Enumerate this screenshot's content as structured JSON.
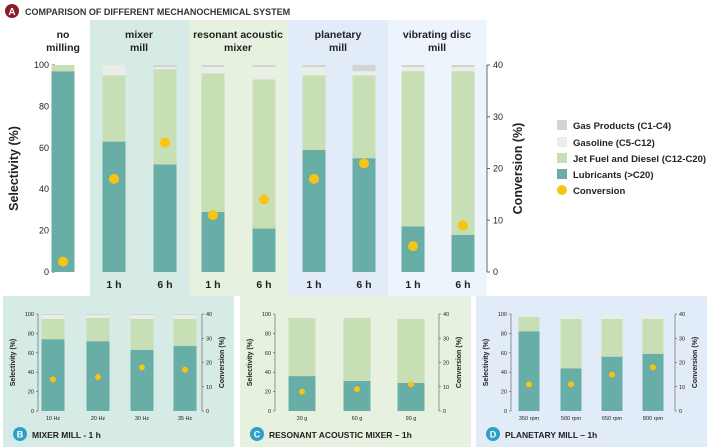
{
  "colors": {
    "gas": "#d3d3d3",
    "gasoline": "#e9efe6",
    "jet": "#c8deb5",
    "lubricants": "#69ada7",
    "conversion": "#f6c413",
    "badge": "#8a1c28",
    "mixer_bg": "#d6ebe6",
    "ram_bg": "#e6f2df",
    "planetary_bg": "#e2ecf8",
    "vibrating_bg": "#eef4fb"
  },
  "panel_a": {
    "badge": "A",
    "title": "COMPARISON OF DIFFERENT MECHANOCHEMICAL SYSTEM"
  },
  "panel_b": {
    "badge": "B",
    "title": "MIXER MILL - 1 h"
  },
  "panel_c": {
    "badge": "C",
    "title": "RESONANT ACOUSTIC MIXER – 1h"
  },
  "panel_d": {
    "badge": "D",
    "title": "PLANETARY MILL – 1h"
  },
  "legend": [
    {
      "key": "gas",
      "label": "Gas Products (C1-C4)",
      "marker": "square"
    },
    {
      "key": "gasoline",
      "label": "Gasoline (C5-C12)",
      "marker": "square"
    },
    {
      "key": "jet",
      "label": "Jet Fuel and Diesel (C12-C20)",
      "marker": "square"
    },
    {
      "key": "lubricants",
      "label": "Lubricants (>C20)",
      "marker": "square"
    },
    {
      "key": "conversion",
      "label": "Conversion",
      "marker": "circle"
    }
  ],
  "chart_data": [
    {
      "id": "A",
      "type": "bar",
      "stacked": true,
      "title": "COMPARISON OF DIFFERENT MECHANOCHEMICAL SYSTEM",
      "ylabel": "Selectivity (%)",
      "y2label": "Conversion (%)",
      "ylim": [
        0,
        100
      ],
      "y2lim": [
        0,
        40
      ],
      "yticks": [
        0,
        20,
        40,
        60,
        80,
        100
      ],
      "y2ticks": [
        0,
        10,
        20,
        30,
        40
      ],
      "groups": [
        {
          "name": "no\nmilling",
          "bars": [
            0
          ]
        },
        {
          "name": "mixer\nmill",
          "bars": [
            1,
            2
          ]
        },
        {
          "name": "resonant acoustic\nmixer",
          "bars": [
            3,
            4
          ]
        },
        {
          "name": "planetary\nmill",
          "bars": [
            5,
            6
          ]
        },
        {
          "name": "vibrating disc\nmill",
          "bars": [
            7,
            8
          ]
        }
      ],
      "categories": [
        "",
        "1 h",
        "6 h",
        "1 h",
        "6 h",
        "1 h",
        "6 h",
        "1 h",
        "6 h"
      ],
      "series": [
        {
          "name": "Lubricants (>C20)",
          "key": "lubricants",
          "values": [
            97,
            63,
            52,
            29,
            21,
            59,
            55,
            22,
            18
          ]
        },
        {
          "name": "Jet Fuel and Diesel (C12-C20)",
          "key": "jet",
          "values": [
            3,
            32,
            46,
            67,
            72,
            36,
            40,
            75,
            79
          ]
        },
        {
          "name": "Gasoline (C5-C12)",
          "key": "gasoline",
          "values": [
            0,
            5,
            1,
            3,
            6,
            4,
            2,
            2,
            2
          ]
        },
        {
          "name": "Gas Products (C1-C4)",
          "key": "gas",
          "values": [
            0,
            0,
            1,
            1,
            1,
            1,
            3,
            1,
            1
          ]
        }
      ],
      "conversion": [
        2,
        18,
        25,
        11,
        14,
        18,
        21,
        5,
        9
      ],
      "grid": false,
      "legend_position": "right"
    },
    {
      "id": "B",
      "type": "bar",
      "stacked": true,
      "ylabel": "Selectivity (%)",
      "y2label": "Conversion (%)",
      "ylim": [
        0,
        100
      ],
      "y2lim": [
        0,
        40
      ],
      "yticks": [
        0,
        20,
        40,
        60,
        80,
        100
      ],
      "y2ticks": [
        0,
        10,
        20,
        30,
        40
      ],
      "categories": [
        "10 Hz",
        "20 Hz",
        "30 Hz",
        "35 Hz"
      ],
      "series": [
        {
          "name": "Lubricants (>C20)",
          "key": "lubricants",
          "values": [
            74,
            72,
            63,
            67
          ]
        },
        {
          "name": "Jet Fuel and Diesel (C12-C20)",
          "key": "jet",
          "values": [
            21,
            24,
            32,
            28
          ]
        },
        {
          "name": "Gasoline (C5-C12)",
          "key": "gasoline",
          "values": [
            4,
            3,
            4,
            4
          ]
        },
        {
          "name": "Gas Products (C1-C4)",
          "key": "gas",
          "values": [
            1,
            1,
            1,
            1
          ]
        }
      ],
      "conversion": [
        13,
        14,
        18,
        17
      ]
    },
    {
      "id": "C",
      "type": "bar",
      "stacked": true,
      "ylabel": "Selectivity (%)",
      "y2label": "Conversion (%)",
      "ylim": [
        0,
        100
      ],
      "y2lim": [
        0,
        40
      ],
      "yticks": [
        0,
        20,
        40,
        60,
        80,
        100
      ],
      "y2ticks": [
        0,
        10,
        20,
        30,
        40
      ],
      "categories": [
        "30 g",
        "60 g",
        "90 g"
      ],
      "series": [
        {
          "name": "Lubricants (>C20)",
          "key": "lubricants",
          "values": [
            36,
            31,
            29
          ]
        },
        {
          "name": "Jet Fuel and Diesel (C12-C20)",
          "key": "jet",
          "values": [
            60,
            65,
            66
          ]
        },
        {
          "name": "Gasoline (C5-C12)",
          "key": "gasoline",
          "values": [
            1,
            1,
            2
          ]
        },
        {
          "name": "Gas Products (C1-C4)",
          "key": "gas",
          "values": [
            0,
            0,
            0
          ]
        }
      ],
      "conversion": [
        8,
        9,
        11
      ]
    },
    {
      "id": "D",
      "type": "bar",
      "stacked": true,
      "ylabel": "Selectivity (%)",
      "y2label": "Conversion (%)",
      "ylim": [
        0,
        100
      ],
      "y2lim": [
        0,
        40
      ],
      "yticks": [
        0,
        20,
        40,
        60,
        80,
        100
      ],
      "y2ticks": [
        0,
        10,
        20,
        30,
        40
      ],
      "categories": [
        "350 rpm",
        "500 rpm",
        "650 rpm",
        "800 rpm"
      ],
      "series": [
        {
          "name": "Lubricants (>C20)",
          "key": "lubricants",
          "values": [
            82,
            44,
            56,
            59
          ]
        },
        {
          "name": "Jet Fuel and Diesel (C12-C20)",
          "key": "jet",
          "values": [
            15,
            51,
            39,
            36
          ]
        },
        {
          "name": "Gasoline (C5-C12)",
          "key": "gasoline",
          "values": [
            1,
            2,
            2,
            3
          ]
        },
        {
          "name": "Gas Products (C1-C4)",
          "key": "gas",
          "values": [
            0,
            0,
            0,
            0
          ]
        }
      ],
      "conversion": [
        11,
        11,
        15,
        18
      ]
    }
  ]
}
